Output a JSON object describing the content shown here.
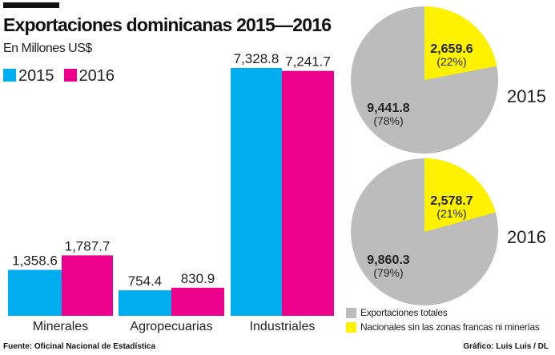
{
  "title": "Exportaciones dominicanas 2015—2016",
  "subtitle": "En Millones US$",
  "source": "Fuente: Oficinal Nacional de Estadística",
  "credit": "Gráfico: Luis Luis / DL",
  "colors": {
    "2015": "#00aeef",
    "2016": "#ec008c",
    "total": "#bcbcbc",
    "nacionales": "#fff200"
  },
  "chart_data": [
    {
      "type": "bar",
      "categories": [
        "Minerales",
        "Agropecuarias",
        "Industriales"
      ],
      "series": [
        {
          "name": "2015",
          "values": [
            1358.6,
            754.4,
            7328.8
          ],
          "labels": [
            "1,358.6",
            "754.4",
            "7,328.8"
          ]
        },
        {
          "name": "2016",
          "values": [
            1787.7,
            830.9,
            7241.7
          ],
          "labels": [
            "1,787.7",
            "830.9",
            "7,241.7"
          ]
        }
      ],
      "ylim": [
        0,
        7328.8
      ]
    },
    {
      "type": "pie",
      "title": "2015",
      "slices": [
        {
          "name": "Exportaciones totales",
          "value": 9441.8,
          "label": "9,441.8",
          "pct": "(78%)"
        },
        {
          "name": "Nacionales sin las zonas francas ni minerías",
          "value": 2659.6,
          "label": "2,659.6",
          "pct": "(22%)"
        }
      ]
    },
    {
      "type": "pie",
      "title": "2016",
      "slices": [
        {
          "name": "Exportaciones totales",
          "value": 9860.3,
          "label": "9,860.3",
          "pct": "(79%)"
        },
        {
          "name": "Nacionales sin las zonas francas ni minerías",
          "value": 2578.7,
          "label": "2,578.7",
          "pct": "(21%)"
        }
      ]
    }
  ]
}
